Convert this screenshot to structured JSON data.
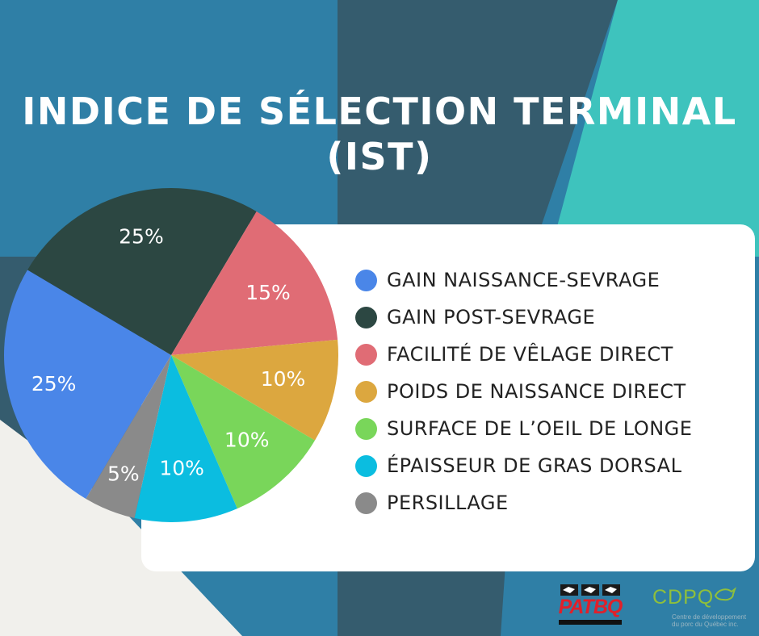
{
  "title": "INDICE DE SÉLECTION TERMINAL (IST)",
  "chart_data": {
    "type": "pie",
    "title": "INDICE DE SÉLECTION TERMINAL (IST)",
    "legend_position": "right",
    "slices": [
      {
        "label": "GAIN NAISSANCE-SEVRAGE",
        "value": 25,
        "display": "25%",
        "color": "#4a86e8"
      },
      {
        "label": "GAIN POST-SEVRAGE",
        "value": 25,
        "display": "25%",
        "color": "#2c4742"
      },
      {
        "label": "FACILITÉ DE VÊLAGE DIRECT",
        "value": 15,
        "display": "15%",
        "color": "#e06c75"
      },
      {
        "label": "POIDS DE NAISSANCE DIRECT",
        "value": 10,
        "display": "10%",
        "color": "#dca73f"
      },
      {
        "label": "SURFACE DE L’OEIL DE LONGE",
        "value": 10,
        "display": "10%",
        "color": "#79d65a"
      },
      {
        "label": "ÉPAISSEUR DE GRAS DORSAL",
        "value": 10,
        "display": "10%",
        "color": "#0bbde0"
      },
      {
        "label": "PERSILLAGE",
        "value": 5,
        "display": "5%",
        "color": "#8a8a8a"
      }
    ]
  },
  "logos": {
    "patbq": {
      "wordmark": "PATBQ",
      "icon": "patbq-cattle-logo"
    },
    "cdpq": {
      "wordmark": "CDPQ",
      "tagline": "Centre de développement du porc du Québec inc.",
      "icon": "pig-icon"
    }
  },
  "colors": {
    "background_blue": "#2f7fa6",
    "background_slate": "#355c6e",
    "background_teal": "#3ec3bd",
    "background_cream": "#f1f0ec"
  }
}
